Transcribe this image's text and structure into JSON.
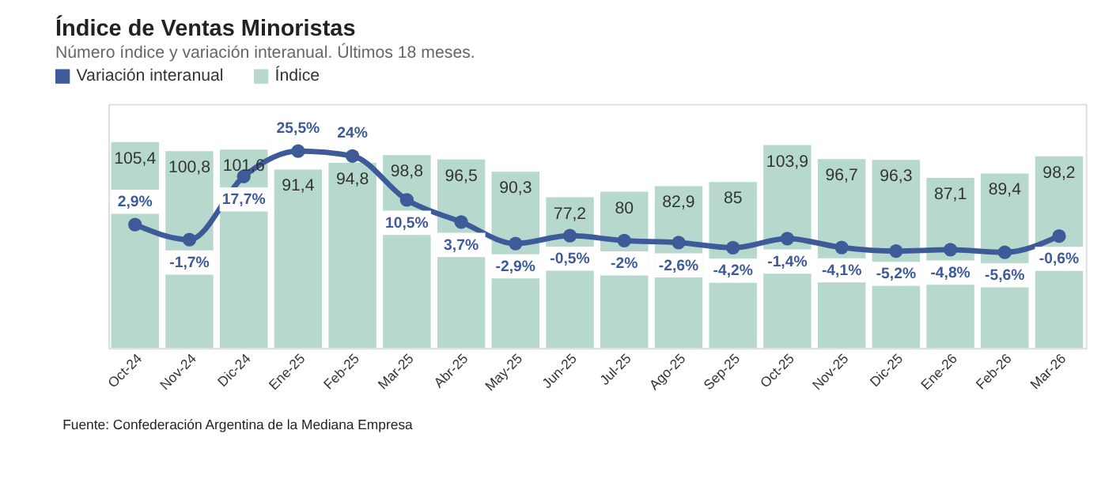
{
  "chart_data": {
    "type": "bar",
    "title": "Índice de Ventas Minoristas",
    "subtitle": "Número índice y variación interanual. Últimos 18 meses.",
    "annotations": [
      "Fuente: Confederación Argentina de la Mediana Empresa"
    ],
    "categories": [
      "Oct-24",
      "Nov-24",
      "Dic-24",
      "Ene-25",
      "Feb-25",
      "Mar-25",
      "Abr-25",
      "May-25",
      "Jun-25",
      "Jul-25",
      "Ago-25",
      "Sep-25",
      "Oct-25",
      "Nov-25",
      "Dic-25",
      "Ene-26",
      "Feb-26",
      "Mar-26"
    ],
    "series": [
      {
        "name": "Variación interanual",
        "type": "line",
        "axis": "y2",
        "color": "#3d5a99",
        "marker": "circle",
        "values": [
          2.9,
          -1.7,
          17.7,
          25.5,
          24,
          10.5,
          3.7,
          -2.9,
          -0.5,
          -2,
          -2.6,
          -4.2,
          -1.4,
          -4.1,
          -5.2,
          -4.8,
          -5.6,
          -0.6
        ],
        "value_labels": [
          "2,9%",
          "-1,7%",
          "17,7%",
          "25,5%",
          "24%",
          "10,5%",
          "3,7%",
          "-2,9%",
          "-0,5%",
          "-2%",
          "-2,6%",
          "-4,2%",
          "-1,4%",
          "-4,1%",
          "-5,2%",
          "-4,8%",
          "-5,6%",
          "-0,6%"
        ]
      },
      {
        "name": "Índice",
        "color": "#b7d9cd",
        "values": [
          105.4,
          100.8,
          101.6,
          91.4,
          94.8,
          98.8,
          96.5,
          90.3,
          77.2,
          80,
          82.9,
          85,
          103.9,
          96.7,
          96.3,
          87.1,
          89.4,
          98.2
        ],
        "value_labels": [
          "105,4",
          "100,8",
          "101,6",
          "91,4",
          "94,8",
          "98,8",
          "96,5",
          "90,3",
          "77,2",
          "80",
          "82,9",
          "85",
          "103,9",
          "96,7",
          "96,3",
          "87,1",
          "89,4",
          "98,2"
        ]
      }
    ],
    "ylim": [
      0,
      125
    ],
    "y2lim": [
      -35,
      40
    ],
    "tick_labels": "x",
    "legend": "top left"
  }
}
